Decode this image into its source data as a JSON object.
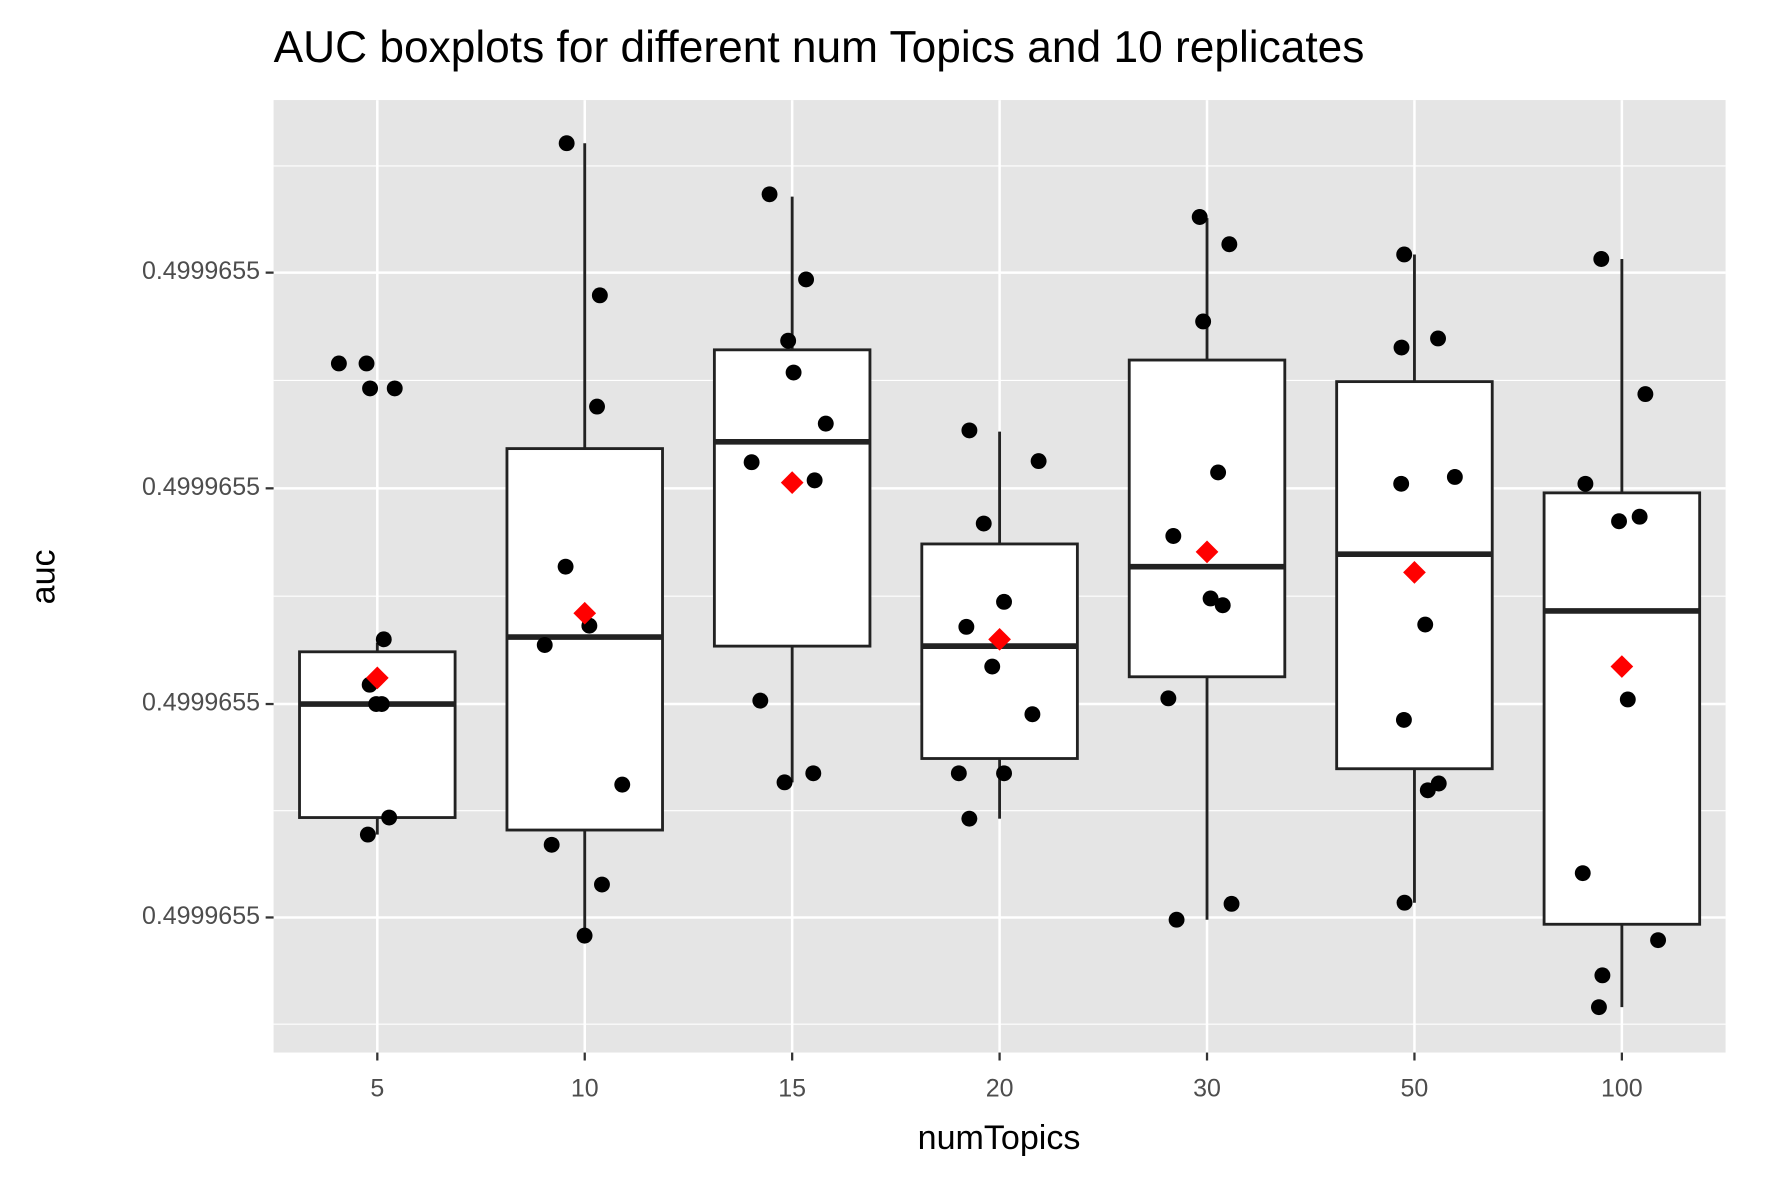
{
  "chart_data": {
    "type": "boxplot",
    "title": "AUC boxplots for different num Topics and 10 replicates",
    "x_label": "numTopics",
    "y_label": "auc",
    "categories": [
      "5",
      "10",
      "15",
      "20",
      "30",
      "50",
      "100"
    ],
    "box_color": "#ffffff",
    "point_color": "#000000",
    "mean_color": "#ff0000",
    "grid": true,
    "ylim": [
      0.49996546881,
      0.4999654772
    ],
    "yticks": [
      {
        "value": 0.49996547,
        "label": "0.4999655"
      },
      {
        "value": 0.49996547188,
        "label": "0.4999655"
      },
      {
        "value": 0.49996547378,
        "label": "0.4999655"
      },
      {
        "value": 0.49996547568,
        "label": "0.4999655"
      }
    ],
    "boxes": [
      {
        "whisker_low": 0.49996547073,
        "q1": 0.49996547088,
        "median": 0.49996547188,
        "q3": 0.49996547234,
        "whisker_high": 0.49996547242,
        "mean": 0.49996547211,
        "points": [
          0.49996547488,
          0.49996547488,
          0.49996547466,
          0.49996547466,
          0.49996547245,
          0.49996547205,
          0.49996547188,
          0.49996547188,
          0.49996547088,
          0.49996547073
        ]
      },
      {
        "whisker_low": 0.49996546984,
        "q1": 0.49996547077,
        "median": 0.49996547247,
        "q3": 0.49996547413,
        "whisker_high": 0.49996547682,
        "mean": 0.49996547268,
        "points": [
          0.49996547682,
          0.49996547548,
          0.4999654745,
          0.49996547309,
          0.49996547257,
          0.4999654724,
          0.49996547117,
          0.49996547064,
          0.49996547029,
          0.49996546984
        ]
      },
      {
        "whisker_low": 0.49996547119,
        "q1": 0.49996547239,
        "median": 0.49996547419,
        "q3": 0.499965475,
        "whisker_high": 0.49996547635,
        "mean": 0.49996547383,
        "points": [
          0.49996547637,
          0.49996547562,
          0.49996547508,
          0.4999654748,
          0.49996547435,
          0.49996547401,
          0.49996547385,
          0.49996547191,
          0.49996547127,
          0.49996547119
        ]
      },
      {
        "whisker_low": 0.49996547087,
        "q1": 0.4999654714,
        "median": 0.49996547239,
        "q3": 0.49996547329,
        "whisker_high": 0.49996547428,
        "mean": 0.49996547245,
        "points": [
          0.49996547429,
          0.49996547402,
          0.49996547347,
          0.49996547278,
          0.49996547256,
          0.49996547221,
          0.49996547179,
          0.49996547127,
          0.49996547127,
          0.49996547087
        ]
      },
      {
        "whisker_low": 0.49996546998,
        "q1": 0.49996547212,
        "median": 0.49996547309,
        "q3": 0.49996547491,
        "whisker_high": 0.49996547616,
        "mean": 0.49996547322,
        "points": [
          0.49996547617,
          0.49996547593,
          0.49996547525,
          0.49996547392,
          0.49996547336,
          0.49996547281,
          0.49996547275,
          0.49996547193,
          0.49996547012,
          0.49996546998
        ]
      },
      {
        "whisker_low": 0.49996547013,
        "q1": 0.49996547131,
        "median": 0.4999654732,
        "q3": 0.49996547472,
        "whisker_high": 0.49996547584,
        "mean": 0.49996547304,
        "points": [
          0.49996547584,
          0.4999654751,
          0.49996547502,
          0.49996547388,
          0.49996547382,
          0.49996547258,
          0.49996547174,
          0.49996547118,
          0.49996547112,
          0.49996547013
        ]
      },
      {
        "whisker_low": 0.49996546921,
        "q1": 0.49996546994,
        "median": 0.4999654727,
        "q3": 0.49996547374,
        "whisker_high": 0.4999654758,
        "mean": 0.49996547221,
        "points": [
          0.4999654758,
          0.49996547461,
          0.49996547382,
          0.49996547353,
          0.49996547349,
          0.49996547192,
          0.49996547039,
          0.4999654698,
          0.49996546949,
          0.49996546921
        ]
      }
    ]
  }
}
